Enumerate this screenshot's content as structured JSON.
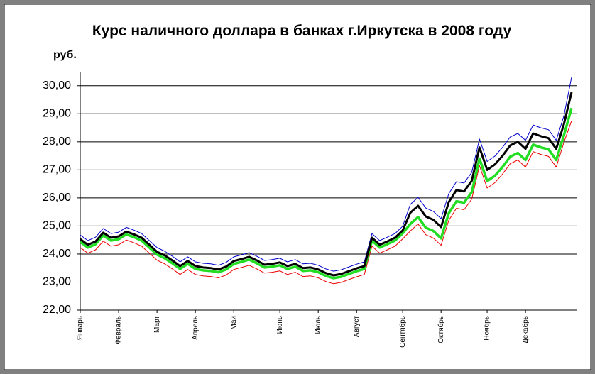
{
  "chart_data": {
    "type": "line",
    "title": "Курс наличного доллара в банках г.Иркутска в 2008 году",
    "y_label": "руб.",
    "categories": [
      "Январь",
      null,
      null,
      null,
      null,
      "Февраль",
      null,
      null,
      null,
      null,
      "Март",
      null,
      null,
      null,
      null,
      "Апрель",
      null,
      null,
      null,
      null,
      "Май",
      null,
      null,
      null,
      null,
      null,
      "Июнь",
      null,
      null,
      null,
      null,
      "Июль",
      null,
      null,
      null,
      null,
      "Август",
      null,
      null,
      null,
      null,
      null,
      "Сентябрь",
      null,
      null,
      null,
      null,
      "Октябрь",
      null,
      null,
      null,
      null,
      null,
      "Ноябрь",
      null,
      null,
      null,
      null,
      "Декабрь",
      null,
      null,
      null,
      null,
      null,
      null
    ],
    "series": [
      {
        "color": "#0000cc",
        "values": [
          24.68,
          24.48,
          24.6,
          24.91,
          24.73,
          24.78,
          24.95,
          24.85,
          24.73,
          24.48,
          24.23,
          24.1,
          23.92,
          23.72,
          23.9,
          23.72,
          23.67,
          23.65,
          23.6,
          23.7,
          23.9,
          23.97,
          24.05,
          23.92,
          23.77,
          23.8,
          23.85,
          23.72,
          23.8,
          23.65,
          23.67,
          23.6,
          23.47,
          23.39,
          23.44,
          23.54,
          23.64,
          23.72,
          24.73,
          24.48,
          24.6,
          24.73,
          24.99,
          25.77,
          26.02,
          25.64,
          25.52,
          25.26,
          26.15,
          26.58,
          26.53,
          26.91,
          28.1,
          27.3,
          27.49,
          27.8,
          28.17,
          28.3,
          28.05,
          28.6,
          28.5,
          28.43,
          28.05,
          28.93,
          30.3
        ]
      },
      {
        "color": "#ee0000",
        "values": [
          24.23,
          24.03,
          24.15,
          24.46,
          24.28,
          24.33,
          24.5,
          24.4,
          24.28,
          24.03,
          23.78,
          23.65,
          23.47,
          23.27,
          23.45,
          23.27,
          23.22,
          23.2,
          23.15,
          23.25,
          23.45,
          23.52,
          23.6,
          23.47,
          23.32,
          23.35,
          23.4,
          23.27,
          23.35,
          23.2,
          23.22,
          23.15,
          23.02,
          22.94,
          22.99,
          23.09,
          23.19,
          23.27,
          24.28,
          24.03,
          24.15,
          24.28,
          24.54,
          24.82,
          25.07,
          24.69,
          24.57,
          24.31,
          25.2,
          25.63,
          25.58,
          25.96,
          27.15,
          26.35,
          26.54,
          26.85,
          27.22,
          27.35,
          27.1,
          27.65,
          27.55,
          27.48,
          27.1,
          27.98,
          28.75
        ]
      },
      {
        "color": "#22dd22",
        "values": [
          24.43,
          24.23,
          24.35,
          24.66,
          24.48,
          24.53,
          24.7,
          24.6,
          24.48,
          24.23,
          23.98,
          23.85,
          23.67,
          23.47,
          23.65,
          23.47,
          23.42,
          23.4,
          23.35,
          23.45,
          23.65,
          23.72,
          23.8,
          23.67,
          23.52,
          23.55,
          23.6,
          23.47,
          23.55,
          23.4,
          23.42,
          23.35,
          23.22,
          23.14,
          23.19,
          23.29,
          23.39,
          23.47,
          24.48,
          24.23,
          24.35,
          24.48,
          24.74,
          25.07,
          25.32,
          24.94,
          24.82,
          24.56,
          25.45,
          25.88,
          25.83,
          26.21,
          27.4,
          26.6,
          26.79,
          27.1,
          27.47,
          27.6,
          27.35,
          27.9,
          27.8,
          27.73,
          27.35,
          28.23,
          29.2
        ]
      },
      {
        "color": "#000000",
        "values": [
          24.53,
          24.33,
          24.45,
          24.76,
          24.58,
          24.63,
          24.8,
          24.7,
          24.58,
          24.33,
          24.08,
          23.95,
          23.77,
          23.57,
          23.75,
          23.57,
          23.52,
          23.5,
          23.45,
          23.55,
          23.75,
          23.82,
          23.9,
          23.77,
          23.62,
          23.65,
          23.7,
          23.57,
          23.65,
          23.5,
          23.52,
          23.45,
          23.32,
          23.24,
          23.29,
          23.39,
          23.49,
          23.57,
          24.58,
          24.33,
          24.45,
          24.58,
          24.84,
          25.47,
          25.72,
          25.34,
          25.22,
          24.96,
          25.85,
          26.28,
          26.23,
          26.61,
          27.8,
          27.0,
          27.19,
          27.5,
          27.87,
          28.0,
          27.75,
          28.3,
          28.2,
          28.13,
          27.75,
          28.63,
          29.77
        ]
      }
    ],
    "ylim": [
      22,
      30.5
    ],
    "yticks": [
      {
        "value": 22,
        "label": "22,00"
      },
      {
        "value": 23,
        "label": "23,00"
      },
      {
        "value": 24,
        "label": "24,00"
      },
      {
        "value": 25,
        "label": "25,00"
      },
      {
        "value": 26,
        "label": "26,00"
      },
      {
        "value": 27,
        "label": "27,00"
      },
      {
        "value": 28,
        "label": "28,00"
      },
      {
        "value": 29,
        "label": "29,00"
      },
      {
        "value": 30,
        "label": "30,00"
      }
    ],
    "grid": true
  }
}
